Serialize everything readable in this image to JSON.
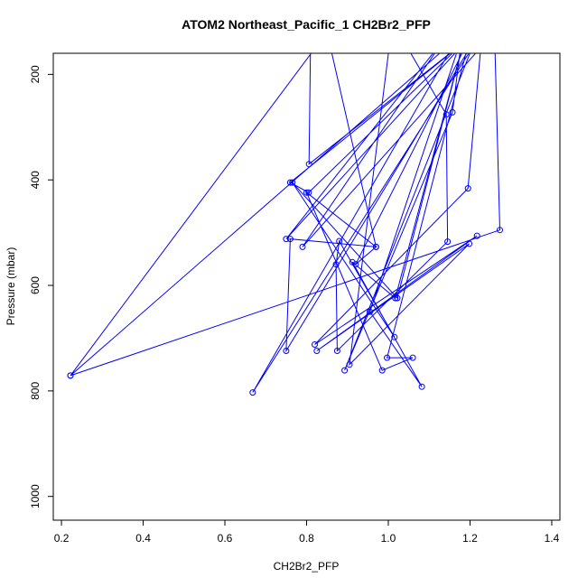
{
  "chart_data": {
    "type": "line",
    "title": "ATOM2 Northeast_Pacific_1 CH2Br2_PFP",
    "xlabel": "CH2Br2_PFP",
    "ylabel": "Pressure (mbar)",
    "xlim": [
      0.18,
      1.42
    ],
    "ylim": [
      1045,
      160
    ],
    "y_reversed": true,
    "x_ticks": [
      0.2,
      0.4,
      0.6,
      0.8,
      1.0,
      1.2,
      1.4
    ],
    "x_tick_labels": [
      "0.2",
      "0.4",
      "0.6",
      "0.8",
      "1.0",
      "1.2",
      "1.4"
    ],
    "y_ticks": [
      200,
      400,
      600,
      800,
      1000
    ],
    "y_tick_labels": [
      "200",
      "400",
      "600",
      "800",
      "1000"
    ],
    "grid": false,
    "colors": {
      "series": "#0000ff",
      "axis": "#000000"
    },
    "series": [
      {
        "points": [
          [
            0.81,
            120
          ],
          [
            0.806,
            370
          ],
          [
            1.2,
            130
          ],
          [
            0.76,
            405
          ],
          [
            0.805,
            424
          ],
          [
            1.21,
            120
          ],
          [
            0.75,
            512
          ],
          [
            1.14,
            130
          ],
          [
            0.79,
            527
          ],
          [
            1.26,
            120
          ],
          [
            1.273,
            495
          ],
          [
            0.222,
            771
          ],
          [
            1.17,
            130
          ],
          [
            0.668,
            803
          ],
          [
            1.23,
            120
          ],
          [
            1.195,
            416
          ],
          [
            0.82,
            712
          ],
          [
            1.217,
            506
          ],
          [
            0.825,
            724
          ],
          [
            1.198,
            521
          ],
          [
            0.905,
            750
          ],
          [
            1.01,
            100
          ],
          [
            1.142,
            276
          ],
          [
            1.145,
            517
          ],
          [
            0.875,
            724
          ],
          [
            0.872,
            560
          ],
          [
            0.88,
            516
          ],
          [
            1.015,
            698
          ],
          [
            0.765,
            405
          ],
          [
            1.022,
            624
          ],
          [
            1.18,
            150
          ],
          [
            1.017,
            624
          ],
          [
            0.912,
            556
          ],
          [
            1.082,
            792
          ],
          [
            0.955,
            650
          ],
          [
            1.18,
            130
          ],
          [
            1.157,
            272
          ],
          [
            0.893,
            761
          ],
          [
            1.215,
            130
          ],
          [
            0.75,
            724
          ],
          [
            0.76,
            512
          ],
          [
            0.97,
            527
          ],
          [
            0.8,
            424
          ],
          [
            0.985,
            761
          ],
          [
            1.06,
            737
          ],
          [
            0.997,
            737
          ],
          [
            1.2,
            130
          ],
          [
            0.92,
            560
          ],
          [
            0.97,
            527
          ],
          [
            0.85,
            120
          ],
          [
            0.222,
            771
          ]
        ]
      }
    ]
  }
}
